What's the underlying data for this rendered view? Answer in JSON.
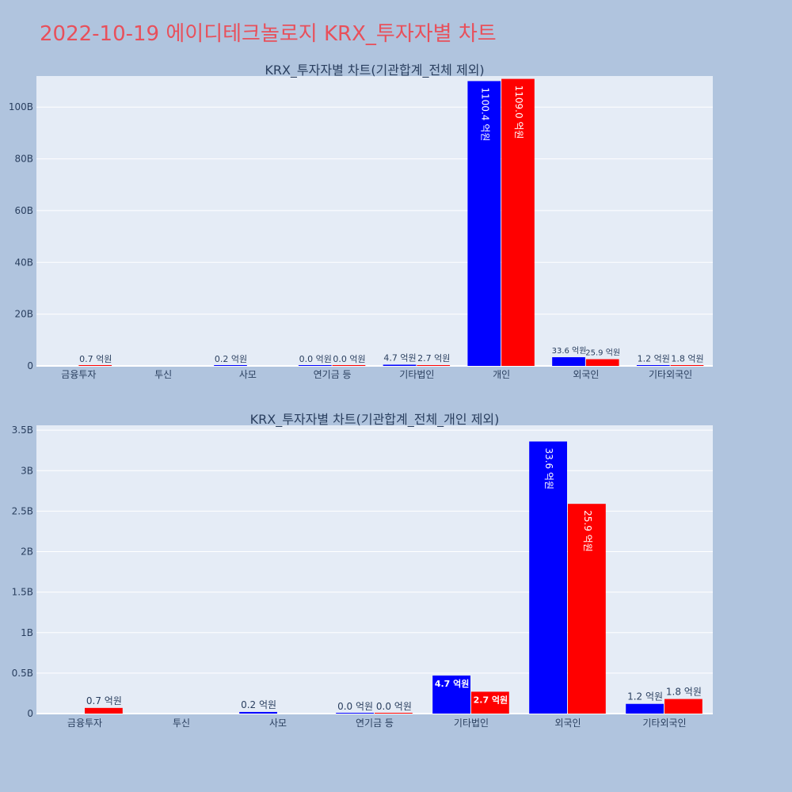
{
  "page": {
    "title": "2022-10-19 에이디테크놀로지 KRX_투자자별 차트",
    "title_color": "#e8505b",
    "background": "#b0c4de"
  },
  "chart_data": [
    {
      "type": "bar",
      "title": "KRX_투자자별 차트(기관합계_전체 제외)",
      "categories": [
        "금융투자",
        "투신",
        "사모",
        "연기금 등",
        "기타법인",
        "개인",
        "외국인",
        "기타외국인"
      ],
      "series": [
        {
          "color": "#0000ff",
          "values": [
            0,
            0,
            0.02,
            0.001,
            0.47,
            110.04,
            3.36,
            0.12
          ],
          "labels": [
            "",
            "",
            "0.2 억원",
            "0.0 억원",
            "4.7 억원",
            "1100.4 억원",
            "33.6 억원",
            "1.2 억원"
          ]
        },
        {
          "color": "#ff0000",
          "values": [
            0.07,
            0,
            0,
            0.001,
            0.27,
            110.9,
            2.59,
            0.18
          ],
          "labels": [
            "0.7 억원",
            "",
            "",
            "0.0 억원",
            "2.7 억원",
            "1109.0 억원",
            "25.9 억원",
            "1.8 억원"
          ]
        }
      ],
      "y_ticks": [
        0,
        20,
        40,
        60,
        80,
        100
      ],
      "y_tick_labels": [
        "0",
        "20B",
        "40B",
        "60B",
        "80B",
        "100B"
      ],
      "ylim": [
        0,
        112
      ],
      "grid": true,
      "plot_bg": "#e5ecf6"
    },
    {
      "type": "bar",
      "title": "KRX_투자자별 차트(기관합계_전체_개인 제외)",
      "categories": [
        "금융투자",
        "투신",
        "사모",
        "연기금 등",
        "기타법인",
        "외국인",
        "기타외국인"
      ],
      "series": [
        {
          "color": "#0000ff",
          "values": [
            0,
            0,
            0.02,
            0.001,
            0.47,
            3.36,
            0.12
          ],
          "labels": [
            "",
            "",
            "0.2 억원",
            "0.0 억원",
            "4.7 억원",
            "33.6 억원",
            "1.2 억원"
          ]
        },
        {
          "color": "#ff0000",
          "values": [
            0.07,
            0,
            0,
            0.001,
            0.27,
            2.59,
            0.18
          ],
          "labels": [
            "0.7 억원",
            "",
            "",
            "0.0 억원",
            "2.7 억원",
            "25.9 억원",
            "1.8 억원"
          ]
        }
      ],
      "y_ticks": [
        0,
        0.5,
        1,
        1.5,
        2,
        2.5,
        3,
        3.5
      ],
      "y_tick_labels": [
        "0",
        "0.5B",
        "1B",
        "1.5B",
        "2B",
        "2.5B",
        "3B",
        "3.5B"
      ],
      "ylim": [
        0,
        3.56
      ],
      "grid": true,
      "plot_bg": "#e5ecf6"
    }
  ]
}
